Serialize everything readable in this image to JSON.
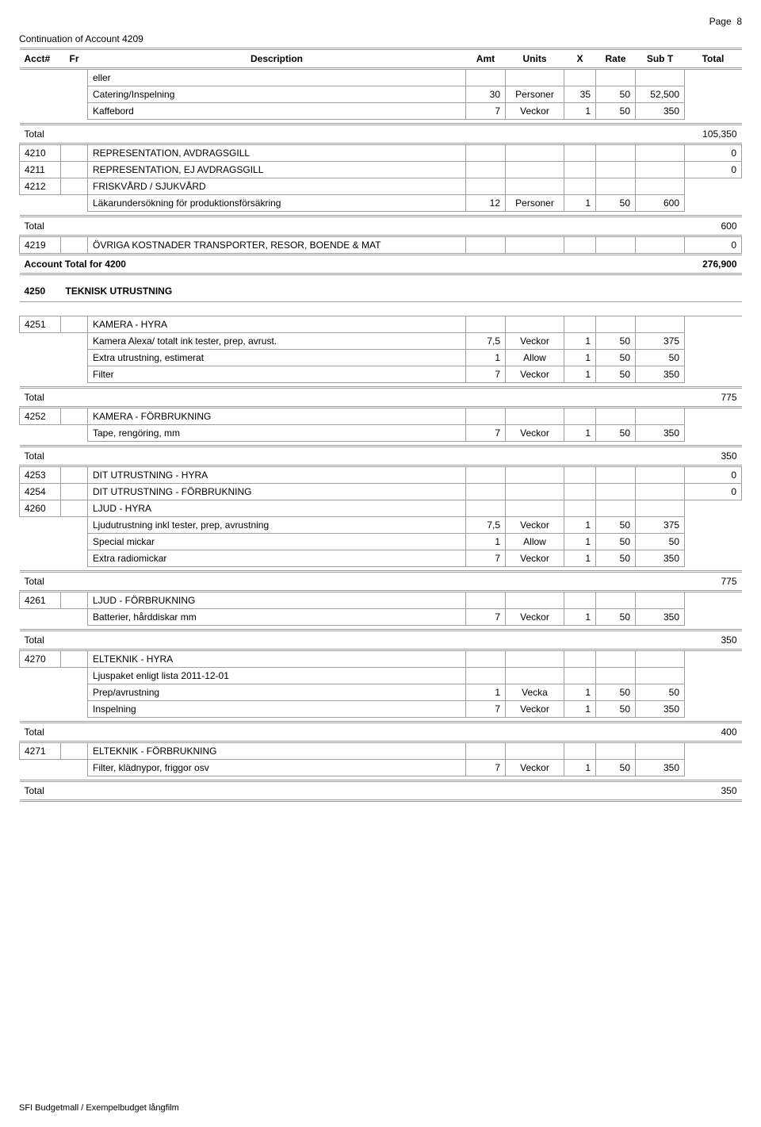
{
  "page_label": "Page",
  "page_number": "8",
  "continuation": "Continuation of Account 4209",
  "footer": "SFI Budgetmall / Exempelbudget långfilm",
  "headers": {
    "acct": "Acct#",
    "fr": "Fr",
    "desc": "Description",
    "amt": "Amt",
    "units": "Units",
    "x": "X",
    "rate": "Rate",
    "subt": "Sub T",
    "total": "Total"
  },
  "word_total": "Total",
  "rows_4209": {
    "eller": "eller",
    "catering": {
      "desc": "Catering/Inspelning",
      "amt": "30",
      "units": "Personer",
      "x": "35",
      "rate": "50",
      "subt": "52,500"
    },
    "kaffe": {
      "desc": "Kaffebord",
      "amt": "7",
      "units": "Veckor",
      "x": "1",
      "rate": "50",
      "subt": "350"
    },
    "total": "105,350"
  },
  "r4210": {
    "acct": "4210",
    "desc": "REPRESENTATION, AVDRAGSGILL",
    "total": "0"
  },
  "r4211": {
    "acct": "4211",
    "desc": "REPRESENTATION, EJ AVDRAGSGILL",
    "total": "0"
  },
  "r4212": {
    "acct": "4212",
    "desc": "FRISKVÅRD / SJUKVÅRD"
  },
  "r4212_line": {
    "desc": "Läkarundersökning för produktionsförsäkring",
    "amt": "12",
    "units": "Personer",
    "x": "1",
    "rate": "50",
    "subt": "600"
  },
  "r4212_total": "600",
  "r4219": {
    "acct": "4219",
    "desc": "ÖVRIGA KOSTNADER TRANSPORTER, RESOR, BOENDE & MAT",
    "total": "0"
  },
  "acct_total_4200": {
    "label": "Account Total for 4200",
    "total": "276,900"
  },
  "section_4250": {
    "acct": "4250",
    "title": "TEKNISK UTRUSTNING"
  },
  "r4251": {
    "acct": "4251",
    "desc": "KAMERA - HYRA"
  },
  "r4251_lines": [
    {
      "desc": "Kamera Alexa/ totalt ink tester, prep, avrust.",
      "amt": "7,5",
      "units": "Veckor",
      "x": "1",
      "rate": "50",
      "subt": "375"
    },
    {
      "desc": "Extra utrustning, estimerat",
      "amt": "1",
      "units": "Allow",
      "x": "1",
      "rate": "50",
      "subt": "50"
    },
    {
      "desc": "Filter",
      "amt": "7",
      "units": "Veckor",
      "x": "1",
      "rate": "50",
      "subt": "350"
    }
  ],
  "r4251_total": "775",
  "r4252": {
    "acct": "4252",
    "desc": "KAMERA - FÖRBRUKNING"
  },
  "r4252_line": {
    "desc": "Tape, rengöring, mm",
    "amt": "7",
    "units": "Veckor",
    "x": "1",
    "rate": "50",
    "subt": "350"
  },
  "r4252_total": "350",
  "r4253": {
    "acct": "4253",
    "desc": "DIT UTRUSTNING - HYRA",
    "total": "0"
  },
  "r4254": {
    "acct": "4254",
    "desc": "DIT UTRUSTNING - FÖRBRUKNING",
    "total": "0"
  },
  "r4260": {
    "acct": "4260",
    "desc": "LJUD - HYRA"
  },
  "r4260_lines": [
    {
      "desc": "Ljudutrustning inkl tester, prep, avrustning",
      "amt": "7,5",
      "units": "Veckor",
      "x": "1",
      "rate": "50",
      "subt": "375"
    },
    {
      "desc": "Special mickar",
      "amt": "1",
      "units": "Allow",
      "x": "1",
      "rate": "50",
      "subt": "50"
    },
    {
      "desc": "Extra radiomickar",
      "amt": "7",
      "units": "Veckor",
      "x": "1",
      "rate": "50",
      "subt": "350"
    }
  ],
  "r4260_total": "775",
  "r4261": {
    "acct": "4261",
    "desc": "LJUD - FÖRBRUKNING"
  },
  "r4261_line": {
    "desc": "Batterier, hårddiskar mm",
    "amt": "7",
    "units": "Veckor",
    "x": "1",
    "rate": "50",
    "subt": "350"
  },
  "r4261_total": "350",
  "r4270": {
    "acct": "4270",
    "desc": "ELTEKNIK - HYRA"
  },
  "r4270_header": "Ljuspaket enligt lista 2011-12-01",
  "r4270_lines": [
    {
      "desc": "Prep/avrustning",
      "amt": "1",
      "units": "Vecka",
      "x": "1",
      "rate": "50",
      "subt": "50"
    },
    {
      "desc": "Inspelning",
      "amt": "7",
      "units": "Veckor",
      "x": "1",
      "rate": "50",
      "subt": "350"
    }
  ],
  "r4270_total": "400",
  "r4271": {
    "acct": "4271",
    "desc": "ELTEKNIK - FÖRBRUKNING"
  },
  "r4271_line": {
    "desc": "Filter, klädnypor, friggor osv",
    "amt": "7",
    "units": "Veckor",
    "x": "1",
    "rate": "50",
    "subt": "350"
  },
  "r4271_total": "350"
}
